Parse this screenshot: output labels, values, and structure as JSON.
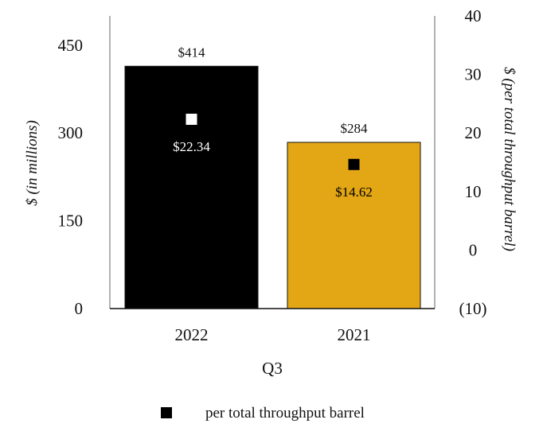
{
  "chart_data": {
    "type": "bar",
    "categories": [
      "2022",
      "2021"
    ],
    "xlabel": "Q3",
    "ylabel": "$ (in millions)",
    "y2label": "$ (per total throughput barrel)",
    "ylim": [
      0,
      500
    ],
    "y2lim": [
      -10,
      40
    ],
    "yticks": [
      "0",
      "150",
      "300",
      "450"
    ],
    "y2ticks": [
      "(10)",
      "0",
      "10",
      "20",
      "30",
      "40"
    ],
    "bars": {
      "values": [
        414,
        284
      ],
      "labels": [
        "$414",
        "$284"
      ],
      "colors": [
        "#000000",
        "#e3a614"
      ]
    },
    "markers": {
      "name": "per total throughput barrel",
      "axis": "secondary",
      "values": [
        22.34,
        14.62
      ],
      "labels": [
        "$22.34",
        "$14.62"
      ],
      "colors": [
        "#ffffff",
        "#000000"
      ],
      "label_colors": [
        "#ffffff",
        "#000000"
      ]
    },
    "legend": {
      "position": "bottom",
      "label": "per total throughput barrel",
      "color": "#000000"
    },
    "grid": false
  }
}
